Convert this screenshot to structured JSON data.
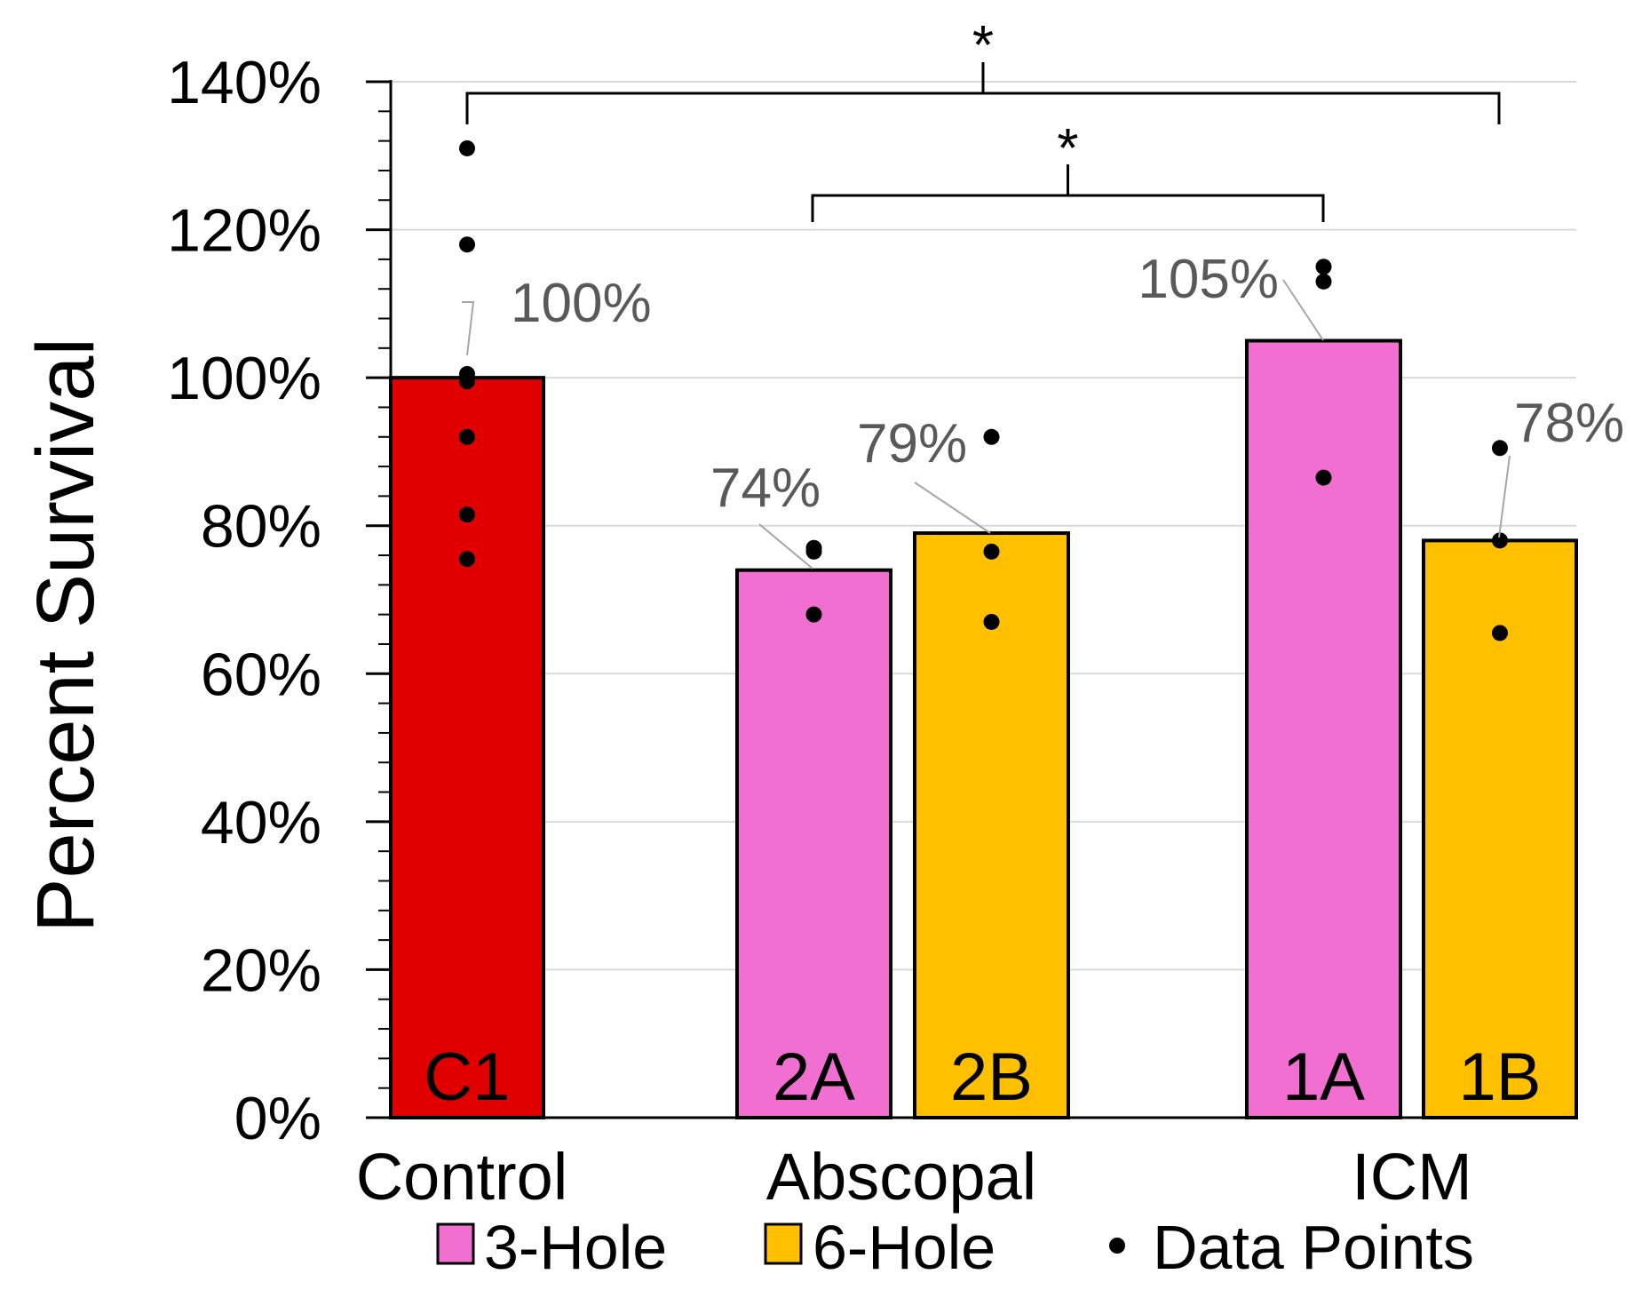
{
  "chart_data": {
    "type": "bar",
    "ylabel": "Percent Survival",
    "ylim": [
      0,
      1.4
    ],
    "yticks": [
      0,
      0.2,
      0.4,
      0.6,
      0.8,
      1.0,
      1.2,
      1.4
    ],
    "ytick_labels": [
      "0%",
      "20%",
      "40%",
      "60%",
      "80%",
      "100%",
      "120%",
      "140%"
    ],
    "grid": true,
    "legend_position": "bottom",
    "groups": [
      "Control",
      "Abscopal",
      "ICM"
    ],
    "series": [
      {
        "name": "3-Hole",
        "color": "#f06fd0"
      },
      {
        "name": "6-Hole",
        "color": "#ffc000"
      }
    ],
    "control_color": "#e00000",
    "points_label": "Data Points",
    "bars": [
      {
        "group": "Control",
        "code": "C1",
        "series": null,
        "value": 1.0,
        "label": "100%",
        "points": [
          1.31,
          1.18,
          1.005,
          0.995,
          0.92,
          0.815,
          0.755
        ]
      },
      {
        "group": "Abscopal",
        "code": "2A",
        "series": "3-Hole",
        "value": 0.74,
        "label": "74%",
        "points": [
          0.77,
          0.765,
          0.68
        ]
      },
      {
        "group": "Abscopal",
        "code": "2B",
        "series": "6-Hole",
        "value": 0.79,
        "label": "79%",
        "points": [
          0.92,
          0.765,
          0.67
        ]
      },
      {
        "group": "ICM",
        "code": "1A",
        "series": "3-Hole",
        "value": 1.05,
        "label": "105%",
        "points": [
          1.15,
          1.13,
          0.865
        ]
      },
      {
        "group": "ICM",
        "code": "1B",
        "series": "6-Hole",
        "value": 0.78,
        "label": "78%",
        "points": [
          0.905,
          0.78,
          0.655
        ]
      }
    ],
    "significance": [
      {
        "from": "C1",
        "to": "1B",
        "label": "*"
      },
      {
        "from": "2A",
        "to": "1A",
        "label": "*"
      }
    ]
  }
}
